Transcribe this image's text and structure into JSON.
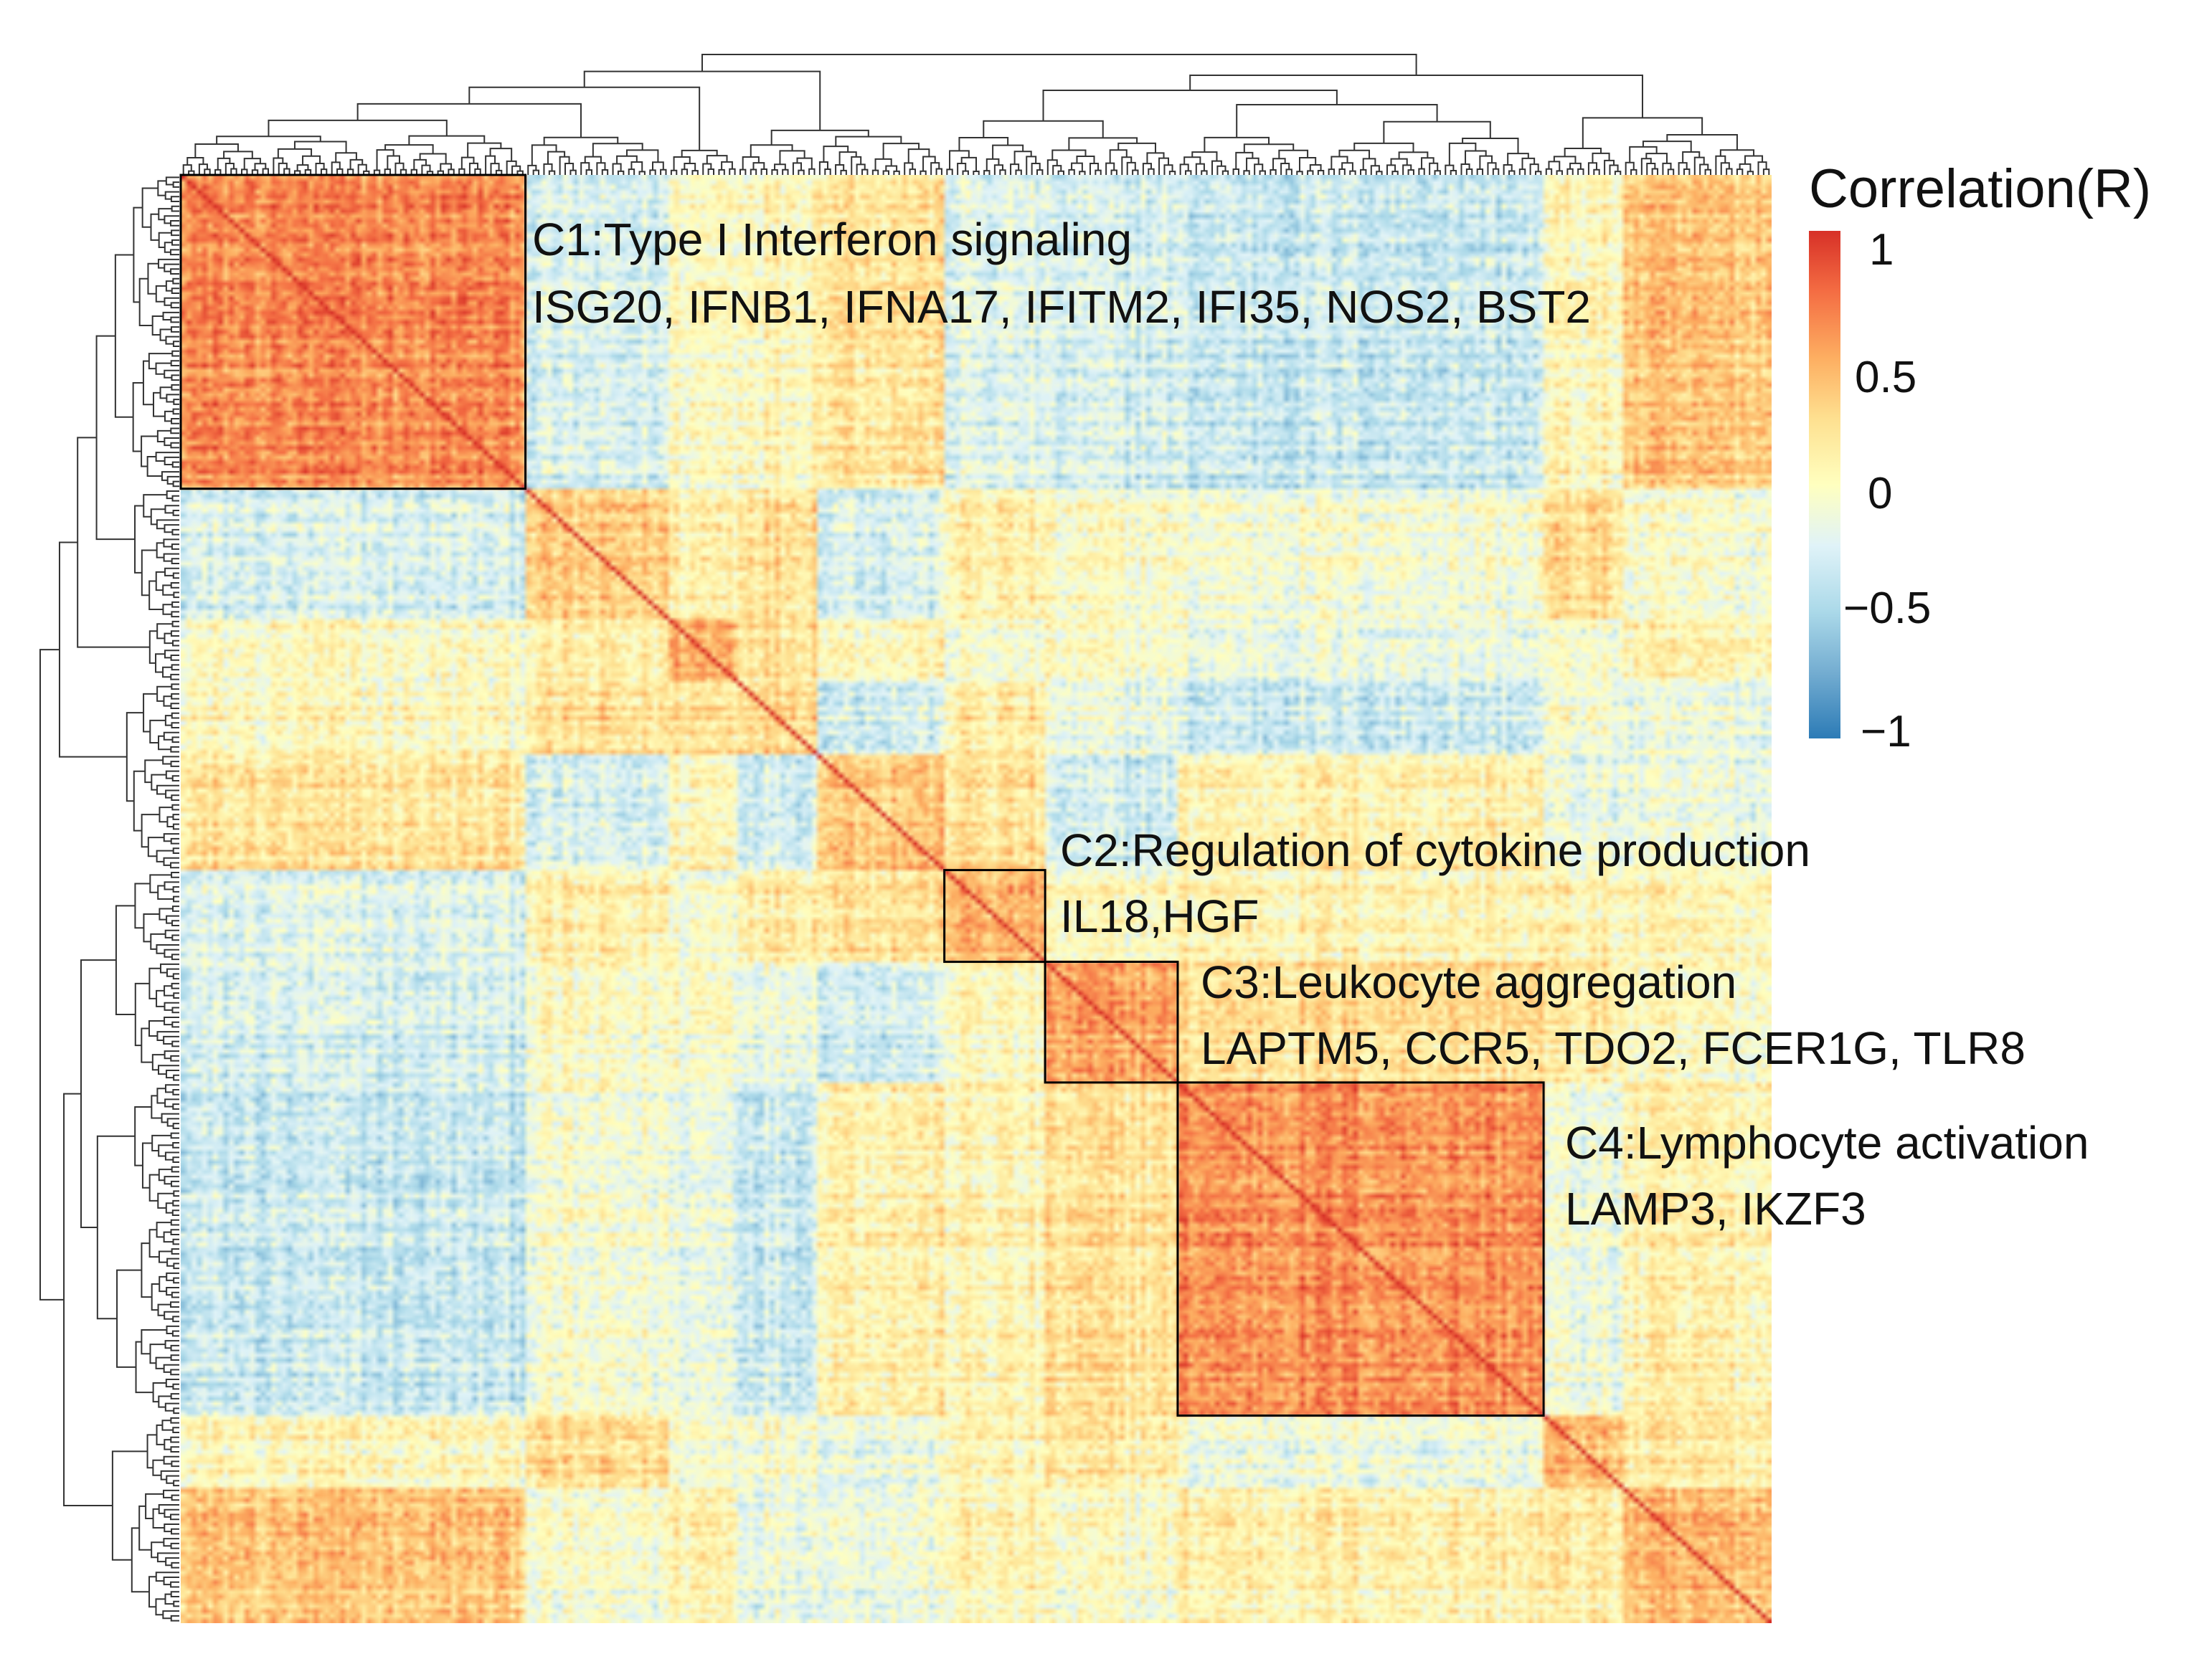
{
  "chart_data": {
    "type": "heatmap",
    "title": "",
    "matrix_description_free": true,
    "colorbar": {
      "title": "Correlation(R)",
      "ticks": [
        {
          "value": 1,
          "label": "1"
        },
        {
          "value": 0.5,
          "label": "0.5"
        },
        {
          "value": 0,
          "label": "0"
        },
        {
          "value": -0.5,
          "label": "−0.5"
        },
        {
          "value": -1,
          "label": "−1"
        }
      ],
      "range": [
        -1,
        1
      ],
      "colors": [
        "#2c7bb6",
        "#74add1",
        "#abd9e9",
        "#e0f3f8",
        "#ffffbf",
        "#fee090",
        "#fdae61",
        "#f46d43",
        "#d73027"
      ]
    },
    "n_features": 300,
    "clusters": [
      {
        "id": "C1",
        "title": "C1:Type I Interferon signaling",
        "genes": "ISG20, IFNB1, IFNA17, IFITM2, IFI35, NOS2, BST2",
        "index_range": [
          0,
          65
        ]
      },
      {
        "id": "C2",
        "title": "C2:Regulation of cytokine production",
        "genes": "IL18,HGF",
        "index_range": [
          144,
          163
        ]
      },
      {
        "id": "C3",
        "title": "C3:Leukocyte aggregation",
        "genes": "LAPTM5, CCR5, TDO2, FCER1G, TLR8",
        "index_range": [
          163,
          188
        ]
      },
      {
        "id": "C4",
        "title": "C4:Lymphocyte activation",
        "genes": "LAMP3, IKZF3",
        "index_range": [
          188,
          257
        ]
      }
    ]
  }
}
